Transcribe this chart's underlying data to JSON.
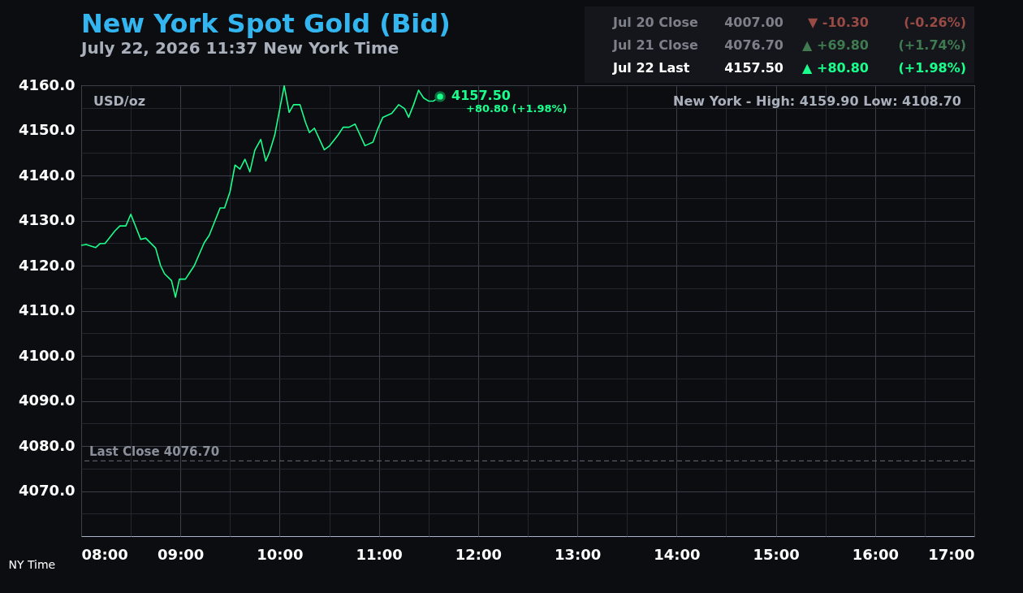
{
  "chart_data": {
    "type": "line",
    "title": "New York Spot Gold (Bid)",
    "subtitle": "July 22, 2026 11:37 New York Time",
    "xlabel": "NY Time",
    "x": [
      8.0,
      8.05,
      8.145,
      8.19,
      8.24,
      8.34,
      8.39,
      8.45,
      8.5,
      8.6,
      8.65,
      8.75,
      8.8,
      8.84,
      8.91,
      8.95,
      8.99,
      9.05,
      9.14,
      9.24,
      9.29,
      9.4,
      9.445,
      9.5,
      9.55,
      9.6,
      9.65,
      9.7,
      9.75,
      9.81,
      9.86,
      9.9,
      9.95,
      10.046,
      10.096,
      10.14,
      10.205,
      10.26,
      10.3,
      10.35,
      10.45,
      10.5,
      10.59,
      10.64,
      10.7,
      10.76,
      10.86,
      10.94,
      10.99,
      11.04,
      11.13,
      11.2,
      11.26,
      11.3,
      11.35,
      11.4,
      11.45,
      11.5,
      11.55,
      11.617
    ],
    "series": [
      {
        "color": "#1aff8c",
        "values": [
          4124.5,
          4124.7,
          4124.0,
          4124.9,
          4124.9,
          4127.7,
          4128.8,
          4128.8,
          4131.4,
          4125.8,
          4126.1,
          4123.9,
          4120.0,
          4118.2,
          4116.7,
          4113.0,
          4117.0,
          4117.0,
          4120.0,
          4125.1,
          4126.7,
          4132.8,
          4132.8,
          4136.4,
          4142.3,
          4141.4,
          4143.6,
          4140.8,
          4145.6,
          4148.0,
          4143.2,
          4145.3,
          4148.9,
          4159.9,
          4154.0,
          4155.7,
          4155.7,
          4151.8,
          4149.5,
          4150.5,
          4145.7,
          4146.5,
          4149.0,
          4150.7,
          4150.7,
          4151.4,
          4146.6,
          4147.4,
          4150.4,
          4152.9,
          4153.8,
          4155.7,
          4154.8,
          4152.9,
          4155.7,
          4158.9,
          4157.2,
          4156.5,
          4156.5,
          4157.5
        ]
      }
    ],
    "xlim": [
      8,
      17
    ],
    "xticks": [
      {
        "value": 8,
        "label": "08:00"
      },
      {
        "value": 8.5,
        "label": null
      },
      {
        "value": 9,
        "label": "09:00"
      },
      {
        "value": 9.5,
        "label": null
      },
      {
        "value": 10,
        "label": "10:00"
      },
      {
        "value": 10.5,
        "label": null
      },
      {
        "value": 11,
        "label": "11:00"
      },
      {
        "value": 11.5,
        "label": null
      },
      {
        "value": 12,
        "label": "12:00"
      },
      {
        "value": 12.5,
        "label": null
      },
      {
        "value": 13,
        "label": "13:00"
      },
      {
        "value": 13.5,
        "label": null
      },
      {
        "value": 14,
        "label": "14:00"
      },
      {
        "value": 14.5,
        "label": null
      },
      {
        "value": 15,
        "label": "15:00"
      },
      {
        "value": 15.5,
        "label": null
      },
      {
        "value": 16,
        "label": "16:00"
      },
      {
        "value": 16.5,
        "label": null
      },
      {
        "value": 17,
        "label": "17:00"
      }
    ],
    "ylim": [
      4060,
      4160
    ],
    "yticks": [
      {
        "value": 4065,
        "label": null
      },
      {
        "value": 4070,
        "label": "4070.0"
      },
      {
        "value": 4075,
        "label": null
      },
      {
        "value": 4080,
        "label": "4080.0"
      },
      {
        "value": 4085,
        "label": null
      },
      {
        "value": 4090,
        "label": "4090.0"
      },
      {
        "value": 4095,
        "label": null
      },
      {
        "value": 4100,
        "label": "4100.0"
      },
      {
        "value": 4105,
        "label": null
      },
      {
        "value": 4110,
        "label": "4110.0"
      },
      {
        "value": 4115,
        "label": null
      },
      {
        "value": 4120,
        "label": "4120.0"
      },
      {
        "value": 4125,
        "label": null
      },
      {
        "value": 4130,
        "label": "4130.0"
      },
      {
        "value": 4135,
        "label": null
      },
      {
        "value": 4140,
        "label": "4140.0"
      },
      {
        "value": 4145,
        "label": null
      },
      {
        "value": 4150,
        "label": "4150.0"
      },
      {
        "value": 4155,
        "label": null
      },
      {
        "value": 4160,
        "label": "4160.0"
      }
    ],
    "grid": true,
    "marker": "none",
    "line_style": "solid",
    "ref_lines": [
      {
        "axis": "y",
        "value": 4076.7,
        "label": "Last Close 4076.70",
        "color": "#6b6f78",
        "line_style": "dashed"
      }
    ],
    "annotations": [
      "Jul 20 Close",
      "4007.00",
      "▼  -10.30",
      "(-0.26%)",
      "Jul 21 Close",
      "4076.70",
      "▲  +69.80",
      "(+1.74%)",
      "Jul 22 Last",
      "4157.50",
      "▲  +80.80",
      "(+1.98%)",
      "USD/oz",
      "New York - High: 4159.90   Low: 4108.70",
      {
        "text": "4157.50",
        "x": 11.617,
        "y": 4157.5
      },
      {
        "text": "+80.80 (+1.98%)",
        "x": 11.617,
        "y": 4157.5
      }
    ]
  }
}
